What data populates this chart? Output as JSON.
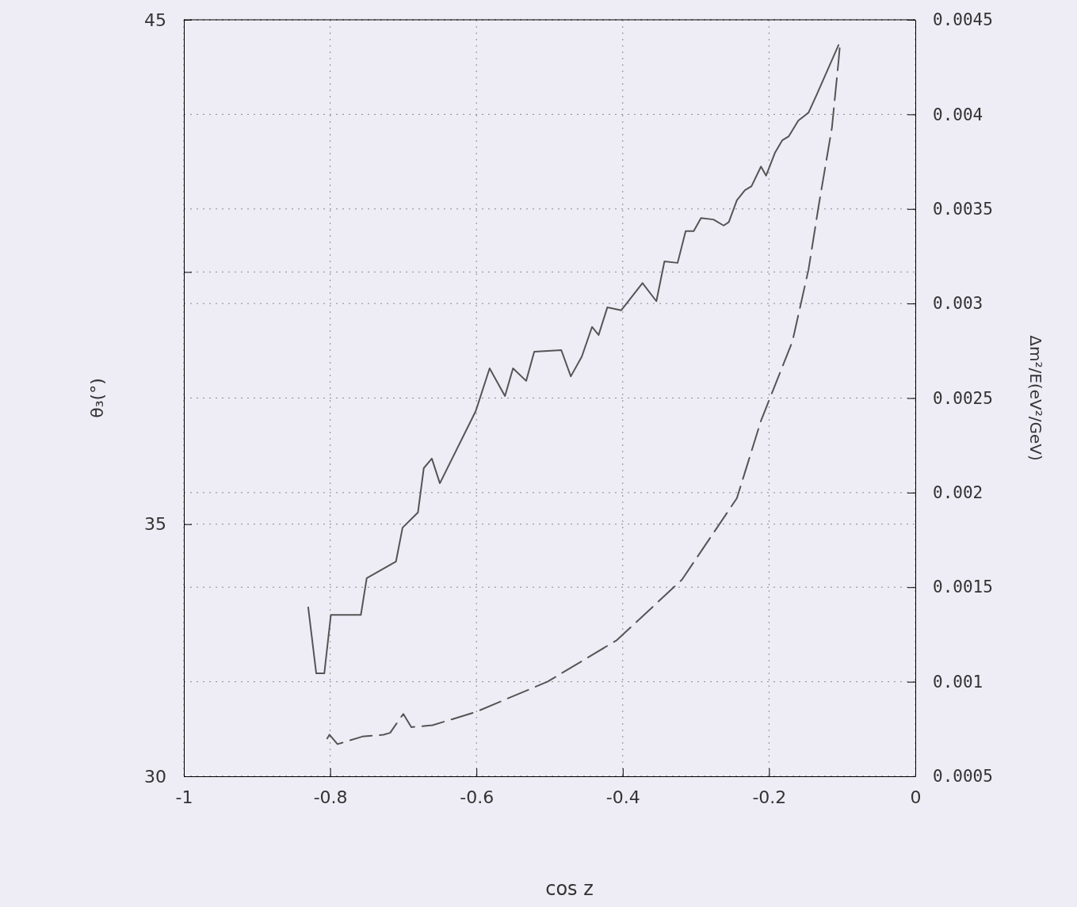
{
  "chart_data": {
    "type": "line",
    "xlabel": "cos z",
    "ylabel": "θ₃(°)",
    "y2label": "Δm²/E(eV²/GeV)",
    "xlim": [
      -1,
      0
    ],
    "xticks": [
      -1,
      -0.8,
      -0.6,
      -0.4,
      -0.2,
      0
    ],
    "ylim": [
      30,
      45
    ],
    "yticks": [
      30,
      35,
      {
        "value": 40,
        "label": null
      },
      45
    ],
    "y2lim": [
      0.0005,
      0.0045
    ],
    "y2ticks": [
      0.0005,
      0.001,
      0.0015,
      0.002,
      0.0025,
      0.003,
      0.0035,
      0.004,
      0.0045
    ],
    "grid": true,
    "marker": "none",
    "series": [
      {
        "color": "#555555",
        "line_style": "solid",
        "x": [
          -0.83,
          -0.819,
          -0.808,
          -0.799,
          -0.758,
          -0.75,
          -0.71,
          -0.701,
          -0.68,
          -0.672,
          -0.661,
          -0.65,
          -0.601,
          -0.582,
          -0.561,
          -0.55,
          -0.532,
          -0.521,
          -0.484,
          -0.471,
          -0.456,
          -0.442,
          -0.433,
          -0.421,
          -0.402,
          -0.373,
          -0.354,
          -0.343,
          -0.325,
          -0.314,
          -0.303,
          -0.293,
          -0.276,
          -0.262,
          -0.255,
          -0.244,
          -0.233,
          -0.224,
          -0.211,
          -0.204,
          -0.192,
          -0.182,
          -0.173,
          -0.16,
          -0.146,
          -0.135,
          -0.105
        ],
        "values": [
          33.35,
          32.04,
          32.04,
          33.2,
          33.2,
          33.93,
          34.26,
          34.93,
          35.23,
          36.11,
          36.3,
          35.81,
          37.24,
          38.09,
          37.54,
          38.09,
          37.84,
          38.42,
          38.45,
          37.93,
          38.32,
          38.91,
          38.75,
          39.3,
          39.24,
          39.78,
          39.42,
          40.21,
          40.18,
          40.81,
          40.81,
          41.07,
          41.04,
          40.92,
          40.99,
          41.42,
          41.62,
          41.7,
          42.09,
          41.91,
          42.36,
          42.61,
          42.69,
          43.0,
          43.16,
          43.51,
          44.5
        ]
      },
      {
        "color": "#555555",
        "line_style": "dashed",
        "axis": "y2",
        "x": [
          -0.804,
          -0.801,
          -0.79,
          -0.756,
          -0.727,
          -0.718,
          -0.7,
          -0.689,
          -0.66,
          -0.601,
          -0.503,
          -0.408,
          -0.319,
          -0.244,
          -0.211,
          -0.168,
          -0.146,
          -0.132,
          -0.114,
          -0.105,
          -0.103
        ],
        "values": [
          0.0007,
          0.00072,
          0.00067,
          0.00071,
          0.00072,
          0.00073,
          0.00083,
          0.00076,
          0.00077,
          0.00084,
          0.001,
          0.00122,
          0.00154,
          0.00197,
          0.00238,
          0.0028,
          0.00318,
          0.00352,
          0.00393,
          0.00428,
          0.00437
        ]
      }
    ]
  }
}
